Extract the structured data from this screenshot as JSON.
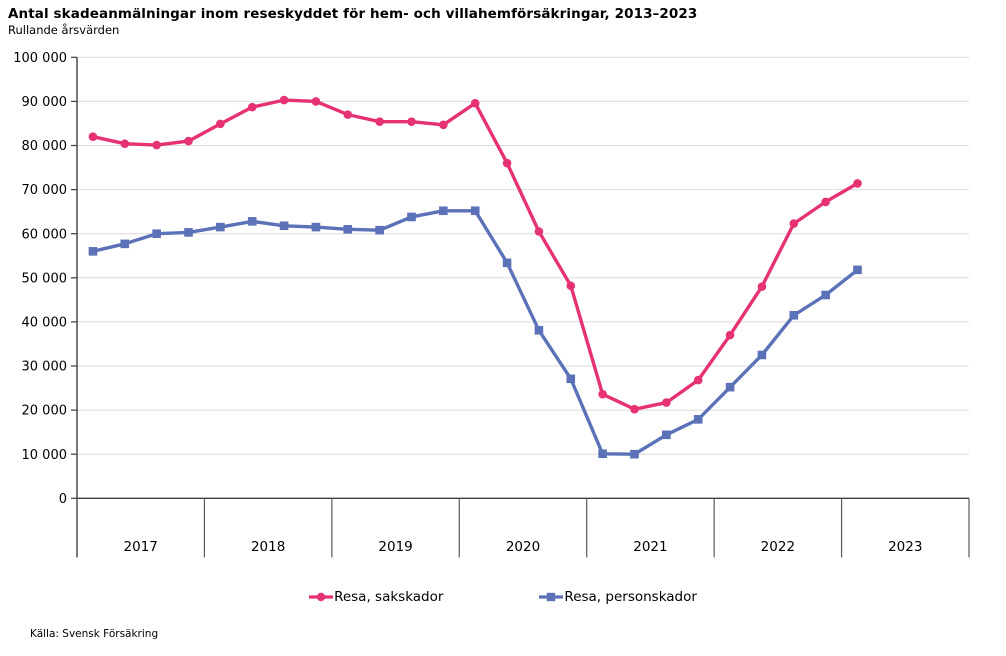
{
  "chart_data": {
    "type": "line",
    "title": "Antal skadeanmälningar inom reseskyddet för hem- och villahemförsäkringar, 2013–2023",
    "subtitle": "Rullande årsvärden",
    "source": "Källa: Svensk Försäkring",
    "grid": true,
    "legend_position": "bottom",
    "ylim": [
      0,
      100000
    ],
    "y_tick_values": [
      0,
      10000,
      20000,
      30000,
      40000,
      50000,
      60000,
      70000,
      80000,
      90000,
      100000
    ],
    "y_tick_labels": [
      "0",
      "10 000",
      "20 000",
      "30 000",
      "40 000",
      "50 000",
      "60 000",
      "70 000",
      "80 000",
      "90 000",
      "100 000"
    ],
    "x_year_labels": [
      "2017",
      "2018",
      "2019",
      "2020",
      "2021",
      "2022",
      "2023"
    ],
    "points_per_year": 4,
    "series": [
      {
        "id": "resa-sakskador",
        "name": "Resa, sakskador",
        "color": "#E63274",
        "marker": "circle",
        "values": [
          82000,
          80400,
          80100,
          81000,
          84900,
          88700,
          90300,
          90000,
          87000,
          85400,
          85400,
          84700,
          89600,
          76000,
          60500,
          48200,
          23600,
          20200,
          21700,
          26800,
          37000,
          48000,
          62300,
          67200,
          71400
        ]
      },
      {
        "id": "resa-personskador",
        "name": "Resa, personskador",
        "color": "#5C72B8",
        "marker": "square",
        "values": [
          56000,
          57700,
          60000,
          60300,
          61500,
          62800,
          61800,
          61500,
          61000,
          60800,
          63800,
          65200,
          65200,
          53400,
          38100,
          27100,
          10100,
          10000,
          14400,
          17900,
          25200,
          32500,
          41500,
          46100,
          51800
        ]
      }
    ],
    "colors": {
      "gridline": "#DBDBDB",
      "axis": "#3F3F3F",
      "separator": "#595959"
    }
  }
}
